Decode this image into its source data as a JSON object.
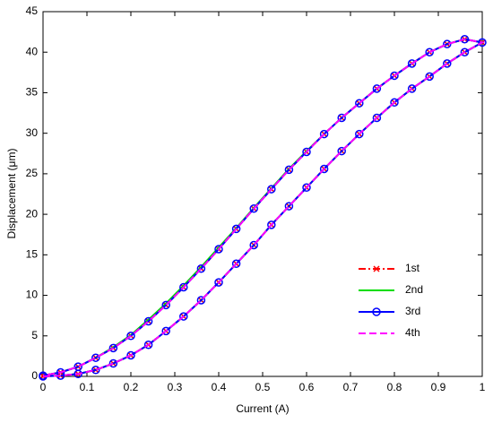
{
  "chart_data": {
    "type": "line",
    "xlabel": "Current (A)",
    "ylabel": "Displacement (μm)",
    "x": [
      0,
      0.04,
      0.08,
      0.12,
      0.16,
      0.2,
      0.24,
      0.28,
      0.32,
      0.36,
      0.4,
      0.44,
      0.48,
      0.52,
      0.56,
      0.6,
      0.64,
      0.68,
      0.72,
      0.76,
      0.8,
      0.84,
      0.88,
      0.92,
      0.96,
      1,
      0.96,
      0.92,
      0.88,
      0.84,
      0.8,
      0.76,
      0.72,
      0.68,
      0.64,
      0.6,
      0.56,
      0.52,
      0.48,
      0.44,
      0.4,
      0.36,
      0.32,
      0.28,
      0.24,
      0.2,
      0.16,
      0.12,
      0.08,
      0.04,
      0
    ],
    "series": [
      {
        "name": "1st",
        "color": "#ff0000",
        "linestyle": "dashdot",
        "marker": "x",
        "values": [
          0,
          0.1,
          0.3,
          0.8,
          1.6,
          2.6,
          3.9,
          5.6,
          7.4,
          9.4,
          11.6,
          13.9,
          16.2,
          18.7,
          21.0,
          23.3,
          25.6,
          27.8,
          29.9,
          31.9,
          33.8,
          35.5,
          37.0,
          38.6,
          40.0,
          41.2,
          41.6,
          41.0,
          40.0,
          38.6,
          37.1,
          35.5,
          33.7,
          31.9,
          29.9,
          27.7,
          25.5,
          23.1,
          20.7,
          18.2,
          15.7,
          13.3,
          11.0,
          8.8,
          6.8,
          5.0,
          3.5,
          2.3,
          1.2,
          0.5,
          0.1
        ]
      },
      {
        "name": "2nd",
        "color": "#00dd00",
        "linestyle": "solid",
        "marker": "none",
        "values": [
          0,
          0.1,
          0.3,
          0.8,
          1.6,
          2.6,
          3.9,
          5.6,
          7.4,
          9.4,
          11.6,
          13.9,
          16.2,
          18.7,
          21.0,
          23.3,
          25.6,
          27.8,
          29.9,
          31.9,
          33.8,
          35.5,
          37.0,
          38.6,
          40.0,
          41.2,
          41.6,
          41.0,
          40.0,
          38.6,
          37.1,
          35.5,
          33.7,
          31.9,
          29.9,
          27.8,
          25.6,
          23.2,
          20.8,
          18.3,
          15.9,
          13.5,
          11.2,
          9.0,
          7.0,
          5.1,
          3.6,
          2.3,
          1.2,
          0.5,
          0.1
        ]
      },
      {
        "name": "3rd",
        "color": "#0000ff",
        "linestyle": "solid",
        "marker": "o",
        "values": [
          0,
          0.1,
          0.3,
          0.8,
          1.6,
          2.6,
          3.9,
          5.6,
          7.4,
          9.4,
          11.6,
          13.9,
          16.2,
          18.7,
          21.0,
          23.3,
          25.6,
          27.8,
          29.9,
          31.9,
          33.8,
          35.5,
          37.0,
          38.6,
          40.0,
          41.2,
          41.6,
          41.0,
          40.0,
          38.6,
          37.1,
          35.5,
          33.7,
          31.9,
          29.9,
          27.7,
          25.5,
          23.1,
          20.7,
          18.2,
          15.7,
          13.3,
          11.0,
          8.8,
          6.8,
          5.0,
          3.5,
          2.3,
          1.2,
          0.5,
          0.1
        ]
      },
      {
        "name": "4th",
        "color": "#ff00ff",
        "linestyle": "dashed",
        "marker": "none",
        "values": [
          0,
          0.1,
          0.3,
          0.8,
          1.6,
          2.6,
          3.9,
          5.6,
          7.4,
          9.4,
          11.6,
          13.9,
          16.2,
          18.7,
          21.0,
          23.3,
          25.6,
          27.8,
          29.9,
          31.9,
          33.8,
          35.5,
          37.0,
          38.6,
          40.0,
          41.2,
          41.6,
          41.0,
          40.0,
          38.6,
          37.1,
          35.5,
          33.7,
          31.9,
          29.9,
          27.7,
          25.5,
          23.1,
          20.7,
          18.2,
          15.7,
          13.3,
          11.0,
          8.8,
          6.8,
          5.0,
          3.5,
          2.3,
          1.2,
          0.5,
          0.1
        ]
      }
    ],
    "xlim": [
      0,
      1
    ],
    "xticks": [
      0,
      0.1,
      0.2,
      0.3,
      0.4,
      0.5,
      0.6,
      0.7,
      0.8,
      0.9,
      1
    ],
    "ylim": [
      0,
      45
    ],
    "yticks": [
      0,
      5,
      10,
      15,
      20,
      25,
      30,
      35,
      40,
      45
    ],
    "grid": false,
    "legend": "lower right"
  }
}
